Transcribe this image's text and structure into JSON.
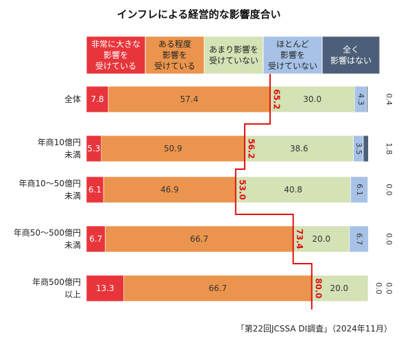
{
  "chart_data": {
    "type": "bar",
    "orientation": "horizontal",
    "stacked": true,
    "normalized": true,
    "title": "インフレによる経営的な影響度合い",
    "categories": [
      [
        "全体"
      ],
      [
        "年商10億円",
        "未満"
      ],
      [
        "年商10～50億円",
        "未満"
      ],
      [
        "年商50～500億円",
        "未満"
      ],
      [
        "年商500億円",
        "以上"
      ]
    ],
    "series": [
      {
        "name": "非常に大きな影響を受けている",
        "legend_lines": [
          "非常に大きな",
          "影響を",
          "受けている"
        ],
        "color": "#e8353c",
        "legend_text_color": "#ffffff",
        "values": [
          7.8,
          5.3,
          6.1,
          6.7,
          13.3
        ]
      },
      {
        "name": "ある程度影響を受けている",
        "legend_lines": [
          "ある程度",
          "影響を",
          "受けている"
        ],
        "color": "#eb944d",
        "legend_text_color": "#222222",
        "values": [
          57.4,
          50.9,
          46.9,
          66.7,
          66.7
        ]
      },
      {
        "name": "あまり影響を受けていない",
        "legend_lines": [
          "あまり影響を",
          "受けていない"
        ],
        "color": "#d4e2b6",
        "legend_text_color": "#222222",
        "values": [
          30.0,
          38.6,
          40.8,
          20.0,
          20.0
        ]
      },
      {
        "name": "ほとんど影響を受けていない",
        "legend_lines": [
          "ほとんど",
          "影響を",
          "受けていない"
        ],
        "color": "#a7c2e6",
        "legend_text_color": "#222222",
        "values": [
          4.3,
          3.5,
          6.1,
          6.7,
          0.0
        ]
      },
      {
        "name": "全く影響はない",
        "legend_lines": [
          "全く",
          "影響はない"
        ],
        "color": "#4d5f78",
        "legend_text_color": "#ffffff",
        "values": [
          0.4,
          1.8,
          0.0,
          0.0,
          0.0
        ]
      }
    ],
    "value_labels": [
      [
        "7.8",
        "57.4",
        "30.0",
        "4.3",
        "0.4"
      ],
      [
        "5.3",
        "50.9",
        "38.6",
        "3.5",
        "1.8"
      ],
      [
        "6.1",
        "46.9",
        "40.8",
        "6.1",
        "0.0"
      ],
      [
        "6.7",
        "66.7",
        "20.0",
        "6.7",
        "0.0"
      ],
      [
        "13.3",
        "66.7",
        "20.0",
        "0.0",
        "0.0"
      ]
    ],
    "cumulative_labels": [
      "65.2",
      "56.2",
      "53.0",
      "73.4",
      "80.0"
    ],
    "cumulative_line_color": "#e01010",
    "xlim": [
      0,
      100
    ],
    "grid": false,
    "legend_position": "top"
  },
  "footnote": "「第22回JCSSA DI調査」（2024年11月）"
}
